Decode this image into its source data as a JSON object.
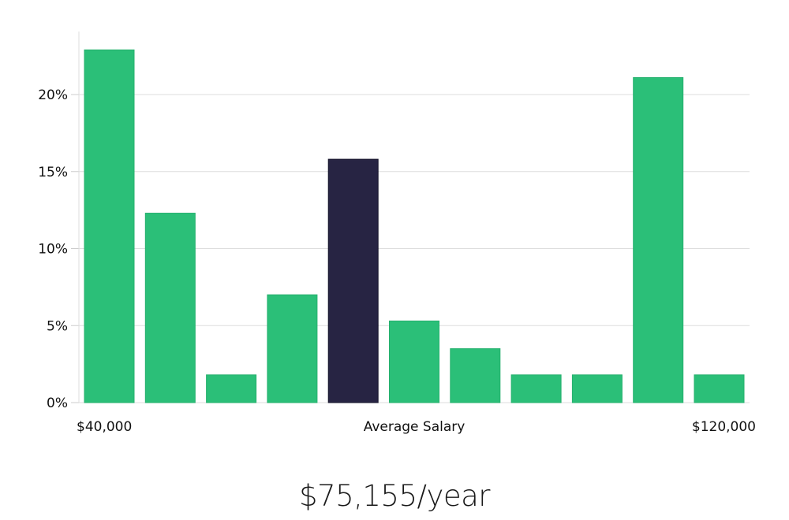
{
  "chart_data": {
    "type": "bar",
    "title": "",
    "xlabel": "Average Salary",
    "ylabel": "",
    "x_min_label": "$40,000",
    "x_max_label": "$120,000",
    "ylim": [
      0,
      24
    ],
    "yticks": [
      0,
      5,
      10,
      15,
      20
    ],
    "ytick_labels": [
      "0%",
      "5%",
      "10%",
      "15%",
      "20%"
    ],
    "grid": true,
    "values": [
      22.9,
      12.3,
      1.8,
      7.0,
      15.8,
      5.3,
      3.5,
      1.8,
      1.8,
      21.1,
      1.8
    ],
    "highlight_index": 4,
    "colors": {
      "bar": "#2bbf78",
      "highlight": "#272443",
      "grid": "#dddddd"
    }
  },
  "summary": {
    "salary": "$75,155/year"
  }
}
